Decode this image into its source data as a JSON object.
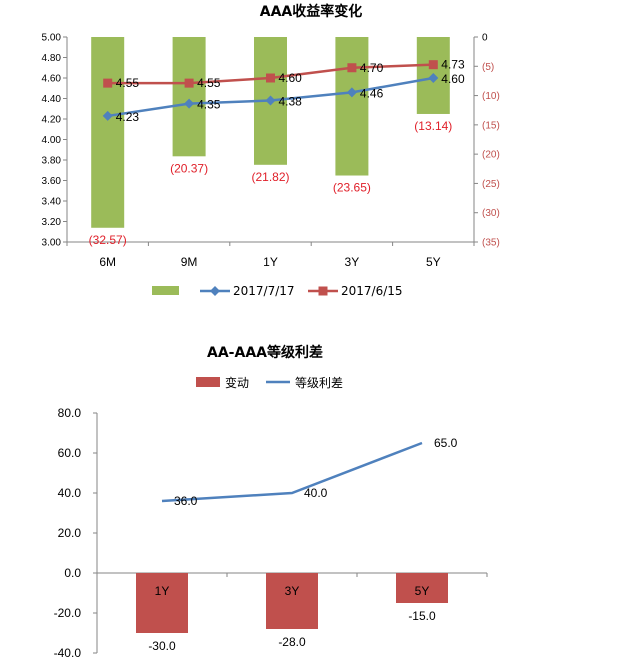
{
  "chart_data": [
    {
      "type": "bar+line",
      "title": "AAA收益率变化",
      "categories": [
        "6M",
        "9M",
        "1Y",
        "3Y",
        "5Y"
      ],
      "ylim_left": [
        3.0,
        5.0
      ],
      "yticks_left": [
        "5.00",
        "4.80",
        "4.60",
        "4.40",
        "4.20",
        "4.00",
        "3.80",
        "3.60",
        "3.40",
        "3.20",
        "3.00"
      ],
      "ylim_right": [
        -35,
        0
      ],
      "yticks_right": [
        "0",
        "(5)",
        "(10)",
        "(15)",
        "(20)",
        "(25)",
        "(30)",
        "(35)"
      ],
      "bars": {
        "name": "",
        "color": "#9bbb59",
        "values": [
          -32.57,
          -20.37,
          -21.82,
          -23.65,
          -13.14
        ],
        "labels": [
          "(32.57)",
          "(20.37)",
          "(21.82)",
          "(23.65)",
          "(13.14)"
        ]
      },
      "series": [
        {
          "name": "2017/7/17",
          "color": "#4f81bd",
          "marker": "diamond",
          "values": [
            4.23,
            4.35,
            4.38,
            4.46,
            4.6
          ],
          "labels": [
            "4.23",
            "4.35",
            "4.38",
            "4.46",
            "4.60"
          ]
        },
        {
          "name": "2017/6/15",
          "color": "#c0504d",
          "marker": "square",
          "values": [
            4.55,
            4.55,
            4.6,
            4.7,
            4.73
          ],
          "labels": [
            "4.55",
            "4.55",
            "4.60",
            "4.70",
            "4.73"
          ]
        }
      ],
      "legend": "bottom",
      "grid": false
    },
    {
      "type": "bar+line",
      "title": "AA-AAA等级利差",
      "categories": [
        "1Y",
        "3Y",
        "5Y"
      ],
      "ylim": [
        -40,
        80
      ],
      "yticks": [
        "80.0",
        "60.0",
        "40.0",
        "20.0",
        "0.0",
        "-20.0",
        "-40.0"
      ],
      "bars": {
        "name": "变动",
        "color": "#c0504d",
        "values": [
          -30.0,
          -28.0,
          -15.0
        ],
        "labels": [
          "-30.0",
          "-28.0",
          "-15.0"
        ]
      },
      "series": [
        {
          "name": "等级利差",
          "color": "#4f81bd",
          "values": [
            36.0,
            40.0,
            65.0
          ],
          "labels": [
            "36.0",
            "40.0",
            "65.0"
          ]
        }
      ],
      "legend": "top",
      "grid": false
    }
  ]
}
